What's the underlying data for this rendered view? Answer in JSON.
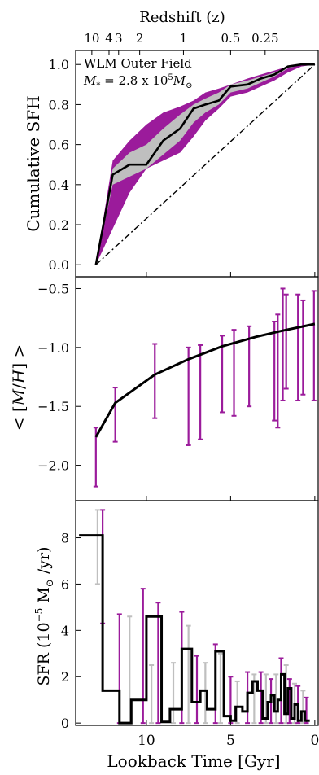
{
  "figure": {
    "top_axis_label": "Redshift (z)",
    "x_axis_label": "Lookback Time [Gyr]",
    "x_ticks": [
      10,
      5,
      0
    ],
    "x_tick_labels": [
      "10",
      "5",
      "0"
    ],
    "top_ticks": [
      {
        "label": "10",
        "t": 13.24
      },
      {
        "label": "4",
        "t": 12.22
      },
      {
        "label": "3",
        "t": 11.65
      },
      {
        "label": "2",
        "t": 10.4
      },
      {
        "label": "1",
        "t": 7.8
      },
      {
        "label": "0.5",
        "t": 5.0
      },
      {
        "label": "0.25",
        "t": 2.95
      }
    ],
    "colors": {
      "purple": "#9b1b9b",
      "gray": "#bfbfbf",
      "black": "#000000"
    }
  },
  "chart_data": [
    {
      "type": "line",
      "panel": "cumulative-sfh",
      "ylabel": "Cumulative SFH",
      "annotation_line1": "WLM Outer Field",
      "annotation_line2_parts": [
        "M",
        "*",
        " = 2.8 x 10",
        "5",
        "M",
        "⊙"
      ],
      "xlim": [
        14.2,
        -0.2
      ],
      "ylim": [
        -0.06,
        1.07
      ],
      "y_ticks": [
        0.0,
        0.2,
        0.4,
        0.6,
        0.8,
        1.0
      ],
      "y_tick_labels": [
        "0.0",
        "0.2",
        "0.4",
        "0.6",
        "0.8",
        "1.0"
      ],
      "x": [
        13.0,
        12.0,
        11.0,
        10.0,
        9.0,
        8.0,
        7.2,
        6.5,
        5.7,
        5.0,
        4.0,
        3.2,
        2.4,
        1.6,
        0.8,
        0.0
      ],
      "best_fit": [
        0.0,
        0.45,
        0.5,
        0.5,
        0.62,
        0.68,
        0.78,
        0.8,
        0.82,
        0.89,
        0.9,
        0.93,
        0.95,
        0.99,
        1.0,
        1.0
      ],
      "gray_upper": [
        0.0,
        0.48,
        0.56,
        0.6,
        0.68,
        0.75,
        0.8,
        0.83,
        0.86,
        0.9,
        0.92,
        0.94,
        0.96,
        0.99,
        1.0,
        1.0
      ],
      "gray_lower": [
        0.0,
        0.4,
        0.44,
        0.48,
        0.55,
        0.62,
        0.71,
        0.76,
        0.8,
        0.86,
        0.88,
        0.91,
        0.94,
        0.98,
        1.0,
        1.0
      ],
      "purple_upper": [
        0.0,
        0.52,
        0.62,
        0.7,
        0.76,
        0.79,
        0.82,
        0.86,
        0.88,
        0.9,
        0.93,
        0.95,
        0.97,
        0.99,
        1.0,
        1.0
      ],
      "purple_lower": [
        0.0,
        0.18,
        0.36,
        0.48,
        0.52,
        0.56,
        0.64,
        0.72,
        0.78,
        0.84,
        0.86,
        0.89,
        0.92,
        0.96,
        0.99,
        1.0
      ],
      "reference_line": {
        "x": [
          13.0,
          0.0
        ],
        "y": [
          0.0,
          1.0
        ]
      }
    },
    {
      "type": "scatter",
      "panel": "metallicity",
      "ylabel_parts": [
        "< [",
        "M",
        "/",
        "H",
        "] >"
      ],
      "xlim": [
        14.2,
        -0.2
      ],
      "ylim": [
        -2.3,
        -0.4
      ],
      "y_ticks": [
        -2.0,
        -1.5,
        -1.0,
        -0.5
      ],
      "y_tick_labels": [
        "−2.0",
        "−1.5",
        "−1.0",
        "−0.5"
      ],
      "trend_x": [
        13.0,
        11.85,
        9.5,
        7.5,
        5.5,
        3.5,
        2.0,
        0.0
      ],
      "trend_y": [
        -1.76,
        -1.47,
        -1.23,
        -1.1,
        -0.99,
        -0.91,
        -0.86,
        -0.8
      ],
      "points": [
        {
          "x": 13.0,
          "low": -2.18,
          "high": -1.68
        },
        {
          "x": 11.85,
          "low": -1.8,
          "high": -1.34
        },
        {
          "x": 9.5,
          "low": -1.6,
          "high": -0.97
        },
        {
          "x": 7.5,
          "low": -1.83,
          "high": -1.0
        },
        {
          "x": 6.8,
          "low": -1.78,
          "high": -0.98
        },
        {
          "x": 5.5,
          "low": -1.55,
          "high": -0.9
        },
        {
          "x": 4.8,
          "low": -1.58,
          "high": -0.85
        },
        {
          "x": 3.9,
          "low": -1.5,
          "high": -0.82
        },
        {
          "x": 2.4,
          "low": -1.62,
          "high": -0.78
        },
        {
          "x": 2.2,
          "low": -1.68,
          "high": -0.72
        },
        {
          "x": 1.9,
          "low": -1.45,
          "high": -0.5
        },
        {
          "x": 1.7,
          "low": -1.35,
          "high": -0.55
        },
        {
          "x": 1.0,
          "low": -1.45,
          "high": -0.55
        },
        {
          "x": 0.7,
          "low": -1.4,
          "high": -0.6
        },
        {
          "x": 0.05,
          "low": -1.45,
          "high": -0.52
        }
      ]
    },
    {
      "type": "bar",
      "panel": "sfr",
      "ylabel_parts": [
        "SFR (10",
        "−5",
        " M",
        "⊙",
        " /yr)"
      ],
      "xlim": [
        14.2,
        -0.2
      ],
      "ylim": [
        -0.1,
        9.6
      ],
      "y_ticks": [
        0,
        2,
        4,
        6,
        8
      ],
      "y_tick_labels": [
        "0",
        "2",
        "4",
        "6",
        "8"
      ],
      "step_edges": [
        14.0,
        12.6,
        12.6,
        11.6,
        11.6,
        10.9,
        10.9,
        10.0,
        10.0,
        9.1,
        9.1,
        8.6,
        8.6,
        7.9,
        7.9,
        7.3,
        7.3,
        6.8,
        6.8,
        6.4,
        6.4,
        5.9,
        5.9,
        5.4,
        5.4,
        5.0,
        5.0,
        4.7,
        4.7,
        4.3,
        4.3,
        4.0,
        4.0,
        3.7,
        3.7,
        3.4,
        3.4,
        3.1,
        3.1,
        2.8,
        2.8,
        2.6,
        2.6,
        2.4,
        2.4,
        2.2,
        2.2,
        2.0,
        2.0,
        1.8,
        1.8,
        1.6,
        1.6,
        1.4,
        1.4,
        1.2,
        1.2,
        1.0,
        1.0,
        0.8,
        0.8,
        0.6,
        0.6,
        0.3
      ],
      "step_values": [
        8.1,
        8.1,
        1.4,
        1.4,
        0.0,
        0.0,
        1.0,
        1.0,
        4.6,
        4.6,
        0.05,
        0.05,
        0.6,
        0.6,
        3.2,
        3.2,
        0.9,
        0.9,
        1.4,
        1.4,
        0.6,
        0.6,
        3.1,
        3.1,
        0.3,
        0.3,
        0.1,
        0.1,
        0.7,
        0.7,
        0.5,
        0.5,
        1.3,
        1.3,
        1.8,
        1.8,
        1.4,
        1.4,
        0.2,
        0.2,
        0.9,
        0.9,
        1.2,
        1.2,
        0.5,
        0.5,
        1.0,
        1.0,
        2.1,
        2.1,
        0.4,
        0.4,
        1.5,
        1.5,
        0.2,
        0.2,
        0.8,
        0.8,
        0.1,
        0.1,
        0.5,
        0.5,
        0.1,
        0.1
      ],
      "purple_errors": [
        {
          "x": 12.6,
          "low": 4.3,
          "high": 9.2
        },
        {
          "x": 11.6,
          "low": 0.0,
          "high": 4.7
        },
        {
          "x": 10.2,
          "low": 0.0,
          "high": 5.8
        },
        {
          "x": 9.3,
          "low": 0.0,
          "high": 5.2
        },
        {
          "x": 7.9,
          "low": 0.0,
          "high": 4.8
        },
        {
          "x": 7.0,
          "low": 0.0,
          "high": 2.9
        },
        {
          "x": 5.9,
          "low": 0.0,
          "high": 3.4
        },
        {
          "x": 5.0,
          "low": 0.0,
          "high": 2.0
        },
        {
          "x": 4.0,
          "low": 0.0,
          "high": 2.2
        },
        {
          "x": 3.2,
          "low": 0.0,
          "high": 2.2
        },
        {
          "x": 2.6,
          "low": 0.0,
          "high": 1.9
        },
        {
          "x": 2.0,
          "low": 0.0,
          "high": 2.8
        },
        {
          "x": 1.5,
          "low": 0.0,
          "high": 1.9
        },
        {
          "x": 1.0,
          "low": 0.0,
          "high": 1.6
        },
        {
          "x": 0.5,
          "low": 0.0,
          "high": 1.1
        }
      ],
      "gray_errors": [
        {
          "x": 12.9,
          "low": 6.0,
          "high": 9.2
        },
        {
          "x": 11.0,
          "low": 0.0,
          "high": 4.6
        },
        {
          "x": 9.7,
          "low": 0.0,
          "high": 2.5
        },
        {
          "x": 8.4,
          "low": 0.0,
          "high": 2.6
        },
        {
          "x": 7.5,
          "low": 0.0,
          "high": 4.2
        },
        {
          "x": 6.5,
          "low": 0.0,
          "high": 2.6
        },
        {
          "x": 5.6,
          "low": 0.0,
          "high": 3.0
        },
        {
          "x": 4.6,
          "low": 0.0,
          "high": 1.8
        },
        {
          "x": 3.6,
          "low": 0.0,
          "high": 2.1
        },
        {
          "x": 2.9,
          "low": 0.0,
          "high": 2.1
        },
        {
          "x": 2.3,
          "low": 0.0,
          "high": 2.1
        },
        {
          "x": 1.7,
          "low": 0.0,
          "high": 2.5
        },
        {
          "x": 1.2,
          "low": 0.0,
          "high": 1.7
        },
        {
          "x": 0.7,
          "low": 0.0,
          "high": 1.4
        }
      ]
    }
  ]
}
